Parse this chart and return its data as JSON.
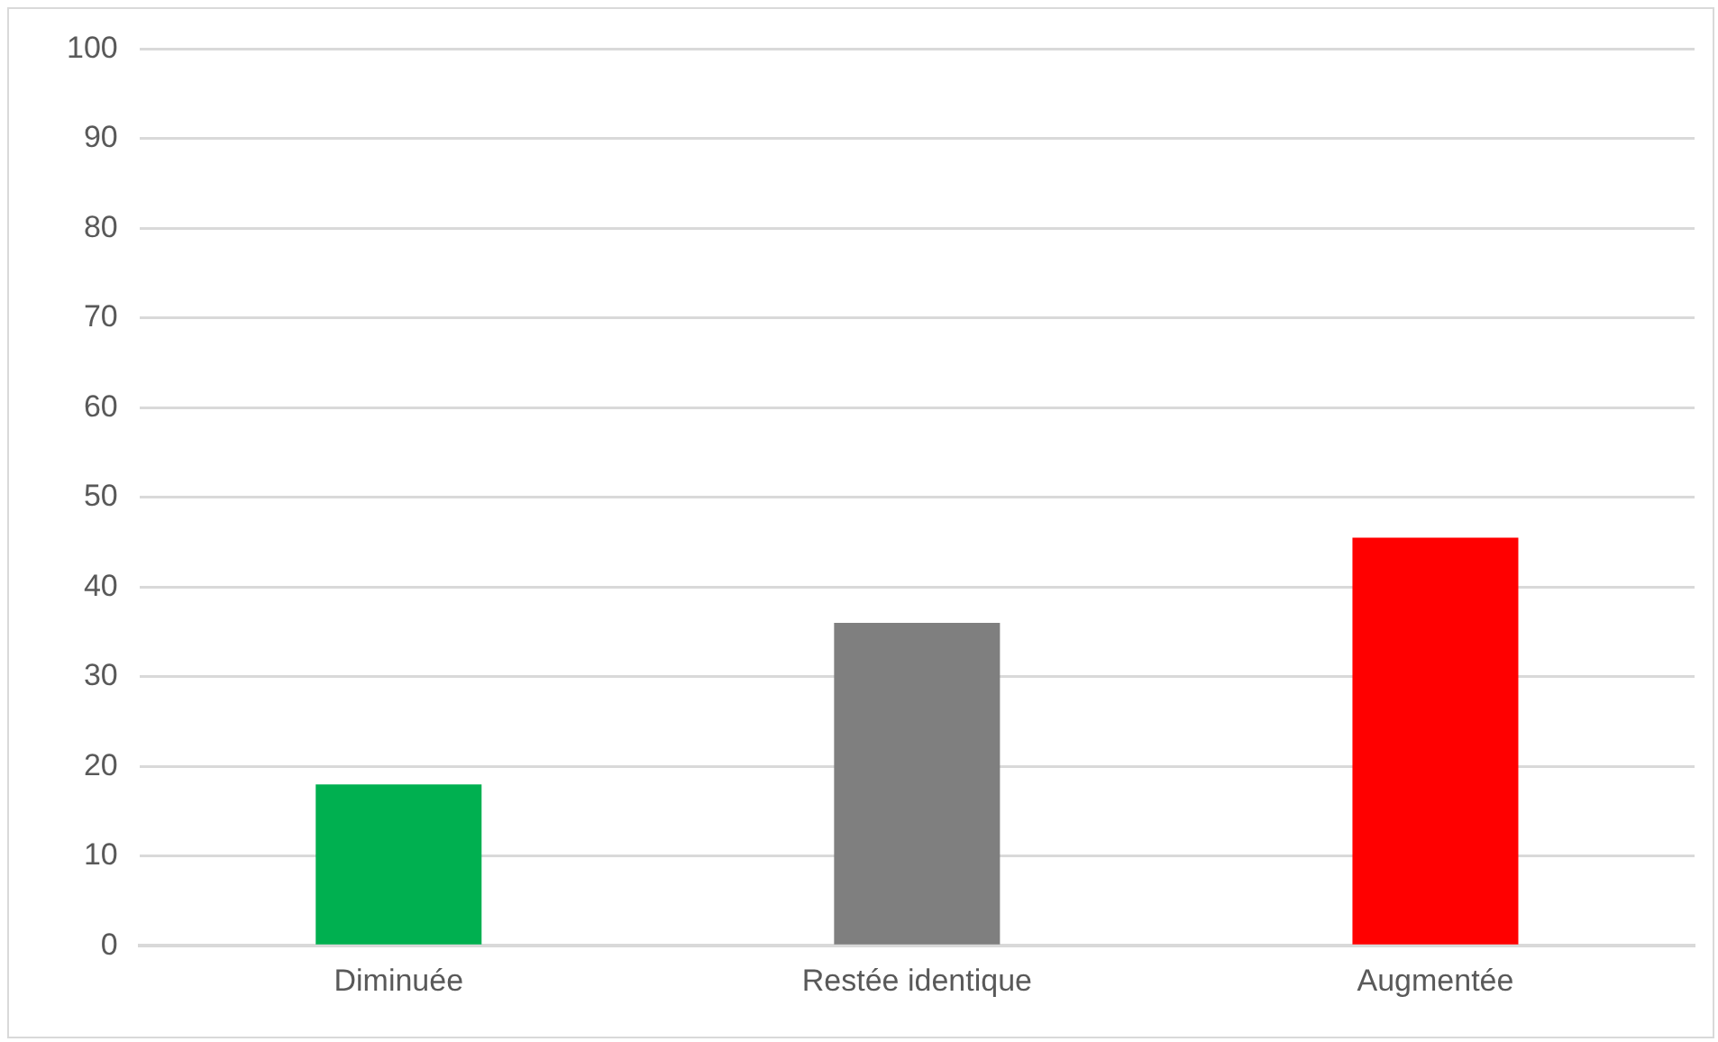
{
  "chart_data": {
    "type": "bar",
    "categories": [
      "Diminuée",
      "Restée identique",
      "Augmentée"
    ],
    "values": [
      18,
      36,
      45.5
    ],
    "colors": [
      "#00b050",
      "#7f7f7f",
      "#ff0000"
    ],
    "ylim": [
      0,
      100
    ],
    "yticks": [
      0,
      10,
      20,
      30,
      40,
      50,
      60,
      70,
      80,
      90,
      100
    ],
    "grid": "y",
    "legend": false
  }
}
